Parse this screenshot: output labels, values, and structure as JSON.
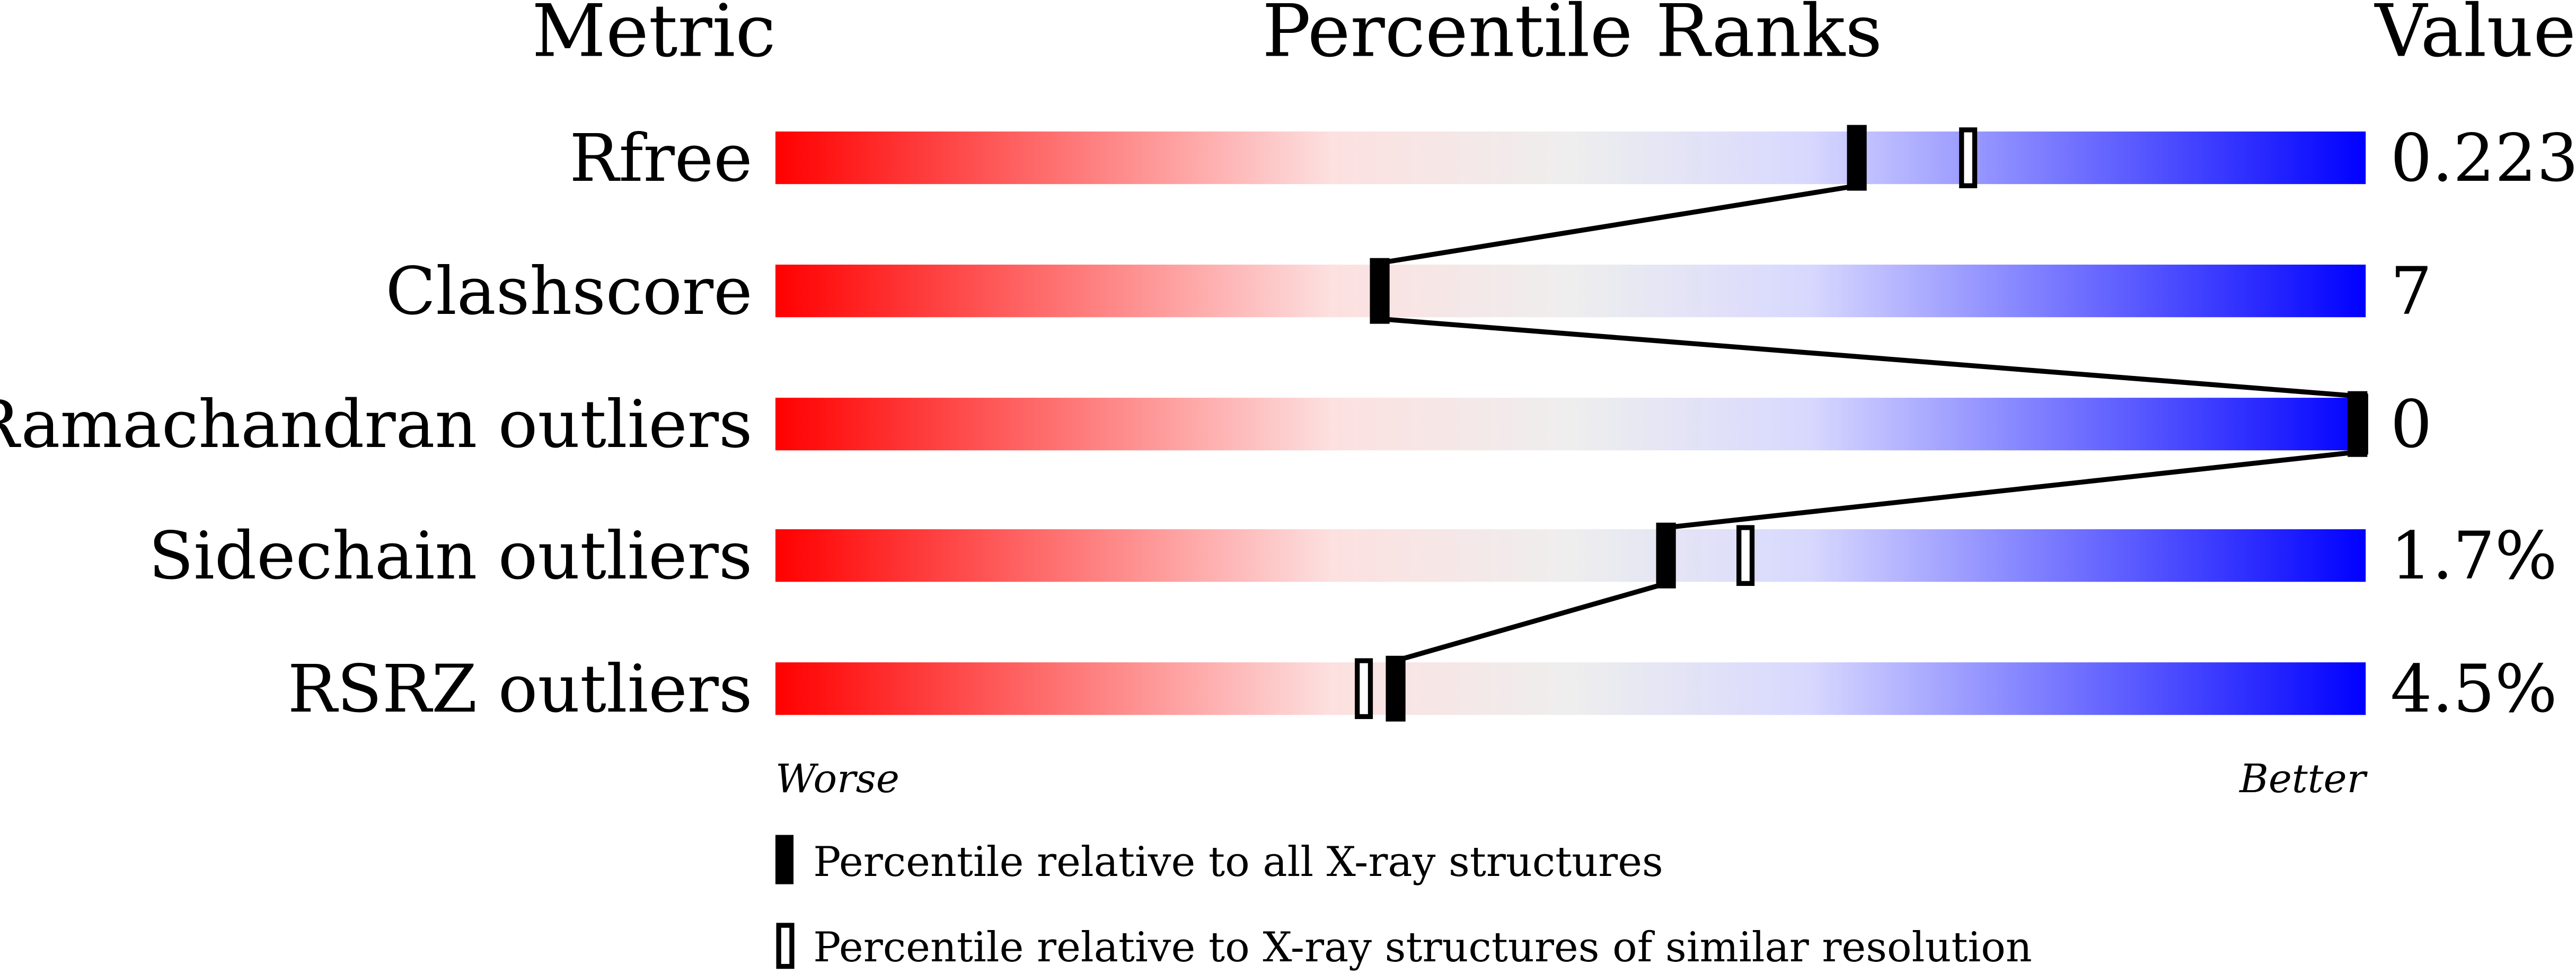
{
  "chart_data": {
    "type": "table",
    "headers": {
      "metric": "Metric",
      "ranks": "Percentile Ranks",
      "value": "Value"
    },
    "xlim": [
      0,
      100
    ],
    "axis_labels": {
      "left": "Worse",
      "right": "Better"
    },
    "colors": {
      "worse": "#ff0000",
      "middle": "#eeeeee",
      "better": "#0000ff"
    },
    "rows": [
      {
        "metric": "Rfree",
        "value": "0.223",
        "percentile_all": 68,
        "percentile_similar": 75
      },
      {
        "metric": "Clashscore",
        "value": "7",
        "percentile_all": 38,
        "percentile_similar": 38
      },
      {
        "metric": "Ramachandran outliers",
        "value": "0",
        "percentile_all": 100,
        "percentile_similar": 100
      },
      {
        "metric": "Sidechain outliers",
        "value": "1.7%",
        "percentile_all": 56,
        "percentile_similar": 61
      },
      {
        "metric": "RSRZ outliers",
        "value": "4.5%",
        "percentile_all": 39,
        "percentile_similar": 37
      }
    ],
    "legend": [
      {
        "marker": "filled",
        "label": "Percentile relative to all X-ray structures"
      },
      {
        "marker": "hollow",
        "label": "Percentile relative to X-ray structures of similar resolution"
      }
    ]
  }
}
